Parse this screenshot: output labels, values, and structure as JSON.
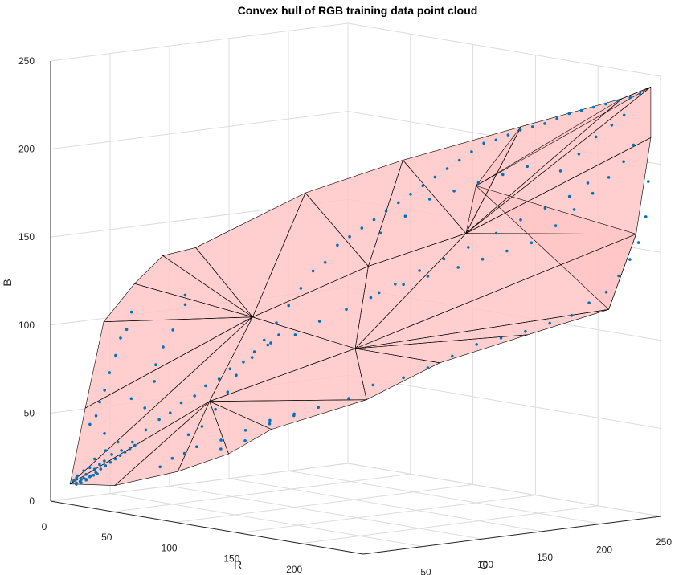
{
  "chart_data": {
    "type": "scatter",
    "title": "Convex hull of RGB training data point cloud",
    "xlabel": "R",
    "ylabel": "G",
    "zlabel": "B",
    "xlim": [
      0,
      250
    ],
    "ylim": [
      0,
      250
    ],
    "zlim": [
      0,
      250
    ],
    "x_ticks": [
      "0",
      "50",
      "100",
      "150",
      "200",
      "250"
    ],
    "y_ticks": [
      "0",
      "50",
      "100",
      "150",
      "200",
      "250"
    ],
    "z_ticks": [
      "0",
      "50",
      "100",
      "150",
      "200",
      "250"
    ],
    "grid": true,
    "point_color": "#0072bd",
    "hull_face_color": "#ffc6c6",
    "hull_edge_color": "#000000",
    "hull_vertices": [
      [
        8,
        8,
        10
      ],
      [
        22,
        6,
        55
      ],
      [
        33,
        10,
        105
      ],
      [
        50,
        18,
        128
      ],
      [
        65,
        26,
        145
      ],
      [
        78,
        40,
        150
      ],
      [
        120,
        88,
        182
      ],
      [
        160,
        128,
        202
      ],
      [
        205,
        180,
        222
      ],
      [
        240,
        228,
        238
      ],
      [
        247,
        245,
        244
      ],
      [
        246,
        246,
        215
      ],
      [
        240,
        240,
        160
      ],
      [
        220,
        238,
        115
      ],
      [
        180,
        212,
        98
      ],
      [
        140,
        180,
        80
      ],
      [
        110,
        150,
        58
      ],
      [
        72,
        110,
        40
      ],
      [
        52,
        95,
        25
      ],
      [
        35,
        70,
        15
      ],
      [
        18,
        35,
        8
      ],
      [
        95,
        70,
        110
      ],
      [
        140,
        120,
        140
      ],
      [
        180,
        160,
        160
      ],
      [
        120,
        130,
        90
      ],
      [
        70,
        60,
        60
      ],
      [
        150,
        200,
        180
      ]
    ],
    "hull_faces": [
      [
        0,
        1,
        21
      ],
      [
        1,
        2,
        21
      ],
      [
        2,
        3,
        21
      ],
      [
        3,
        4,
        21
      ],
      [
        4,
        5,
        21
      ],
      [
        5,
        6,
        21
      ],
      [
        6,
        7,
        22
      ],
      [
        6,
        21,
        22
      ],
      [
        7,
        8,
        23
      ],
      [
        7,
        22,
        23
      ],
      [
        8,
        9,
        23
      ],
      [
        9,
        10,
        23
      ],
      [
        10,
        11,
        23
      ],
      [
        11,
        12,
        23
      ],
      [
        12,
        13,
        24
      ],
      [
        12,
        23,
        24
      ],
      [
        13,
        14,
        24
      ],
      [
        14,
        15,
        24
      ],
      [
        15,
        16,
        24
      ],
      [
        16,
        17,
        25
      ],
      [
        16,
        24,
        25
      ],
      [
        17,
        18,
        25
      ],
      [
        18,
        19,
        25
      ],
      [
        19,
        20,
        25
      ],
      [
        20,
        0,
        25
      ],
      [
        0,
        21,
        25
      ],
      [
        21,
        22,
        24
      ],
      [
        21,
        24,
        25
      ],
      [
        22,
        23,
        24
      ],
      [
        8,
        23,
        26
      ],
      [
        9,
        26,
        10
      ],
      [
        13,
        26,
        12
      ]
    ],
    "points": [
      [
        10,
        9,
        12
      ],
      [
        12,
        10,
        15
      ],
      [
        15,
        12,
        18
      ],
      [
        18,
        14,
        20
      ],
      [
        20,
        16,
        25
      ],
      [
        22,
        18,
        22
      ],
      [
        25,
        20,
        30
      ],
      [
        14,
        11,
        13
      ],
      [
        16,
        13,
        16
      ],
      [
        19,
        17,
        19
      ],
      [
        13,
        8,
        14
      ],
      [
        24,
        20,
        24
      ],
      [
        28,
        22,
        28
      ],
      [
        30,
        25,
        35
      ],
      [
        26,
        18,
        40
      ],
      [
        20,
        12,
        45
      ],
      [
        23,
        14,
        50
      ],
      [
        25,
        15,
        58
      ],
      [
        28,
        16,
        65
      ],
      [
        30,
        18,
        75
      ],
      [
        33,
        20,
        85
      ],
      [
        35,
        22,
        95
      ],
      [
        38,
        24,
        100
      ],
      [
        40,
        26,
        110
      ],
      [
        36,
        30,
        60
      ],
      [
        42,
        35,
        55
      ],
      [
        45,
        40,
        70
      ],
      [
        48,
        38,
        80
      ],
      [
        50,
        42,
        90
      ],
      [
        55,
        45,
        100
      ],
      [
        60,
        50,
        120
      ],
      [
        62,
        48,
        115
      ],
      [
        58,
        55,
        40
      ],
      [
        64,
        60,
        45
      ],
      [
        70,
        65,
        55
      ],
      [
        75,
        70,
        65
      ],
      [
        80,
        72,
        75
      ],
      [
        85,
        80,
        85
      ],
      [
        90,
        85,
        95
      ],
      [
        95,
        90,
        105
      ],
      [
        100,
        95,
        115
      ],
      [
        105,
        100,
        125
      ],
      [
        110,
        105,
        135
      ],
      [
        115,
        110,
        140
      ],
      [
        120,
        115,
        150
      ],
      [
        125,
        120,
        155
      ],
      [
        130,
        125,
        160
      ],
      [
        135,
        130,
        165
      ],
      [
        140,
        135,
        170
      ],
      [
        145,
        140,
        175
      ],
      [
        150,
        145,
        180
      ],
      [
        155,
        150,
        185
      ],
      [
        160,
        155,
        190
      ],
      [
        165,
        160,
        195
      ],
      [
        170,
        165,
        200
      ],
      [
        175,
        170,
        205
      ],
      [
        180,
        175,
        210
      ],
      [
        185,
        180,
        212
      ],
      [
        190,
        185,
        215
      ],
      [
        195,
        190,
        218
      ],
      [
        200,
        195,
        220
      ],
      [
        205,
        200,
        222
      ],
      [
        210,
        205,
        225
      ],
      [
        215,
        210,
        228
      ],
      [
        220,
        215,
        230
      ],
      [
        225,
        220,
        232
      ],
      [
        230,
        225,
        234
      ],
      [
        235,
        230,
        236
      ],
      [
        240,
        235,
        238
      ],
      [
        243,
        240,
        240
      ],
      [
        238,
        232,
        228
      ],
      [
        232,
        228,
        222
      ],
      [
        225,
        222,
        215
      ],
      [
        218,
        215,
        205
      ],
      [
        210,
        208,
        195
      ],
      [
        60,
        80,
        30
      ],
      [
        70,
        90,
        35
      ],
      [
        80,
        100,
        45
      ],
      [
        90,
        110,
        50
      ],
      [
        100,
        120,
        55
      ],
      [
        110,
        135,
        60
      ],
      [
        120,
        145,
        68
      ],
      [
        130,
        160,
        72
      ],
      [
        140,
        170,
        78
      ],
      [
        150,
        180,
        85
      ],
      [
        160,
        190,
        92
      ],
      [
        170,
        200,
        96
      ],
      [
        180,
        210,
        100
      ],
      [
        190,
        220,
        105
      ],
      [
        200,
        228,
        110
      ],
      [
        210,
        232,
        118
      ],
      [
        220,
        236,
        125
      ],
      [
        228,
        238,
        135
      ],
      [
        235,
        240,
        145
      ],
      [
        240,
        242,
        155
      ],
      [
        244,
        244,
        170
      ],
      [
        245,
        245,
        190
      ],
      [
        100,
        80,
        95
      ],
      [
        110,
        90,
        100
      ],
      [
        120,
        100,
        108
      ],
      [
        130,
        112,
        115
      ],
      [
        140,
        122,
        122
      ],
      [
        150,
        132,
        130
      ],
      [
        160,
        142,
        138
      ],
      [
        170,
        152,
        145
      ],
      [
        180,
        162,
        152
      ],
      [
        190,
        175,
        160
      ],
      [
        200,
        185,
        168
      ],
      [
        210,
        195,
        175
      ],
      [
        220,
        205,
        182
      ],
      [
        228,
        212,
        190
      ],
      [
        40,
        50,
        20
      ],
      [
        45,
        55,
        25
      ],
      [
        50,
        60,
        28
      ],
      [
        55,
        65,
        32
      ],
      [
        65,
        75,
        36
      ],
      [
        75,
        85,
        42
      ],
      [
        85,
        95,
        48
      ],
      [
        95,
        105,
        52
      ],
      [
        30,
        28,
        30
      ],
      [
        35,
        32,
        35
      ],
      [
        40,
        38,
        42
      ],
      [
        45,
        44,
        48
      ],
      [
        50,
        48,
        52
      ],
      [
        55,
        52,
        58
      ],
      [
        60,
        58,
        62
      ],
      [
        65,
        62,
        68
      ],
      [
        70,
        68,
        72
      ],
      [
        75,
        72,
        78
      ],
      [
        80,
        78,
        82
      ],
      [
        85,
        82,
        88
      ],
      [
        90,
        88,
        92
      ],
      [
        95,
        92,
        98
      ],
      [
        150,
        120,
        160
      ],
      [
        160,
        130,
        170
      ],
      [
        170,
        140,
        180
      ],
      [
        180,
        150,
        185
      ],
      [
        190,
        160,
        190
      ],
      [
        200,
        170,
        195
      ],
      [
        210,
        180,
        200
      ],
      [
        120,
        150,
        120
      ],
      [
        130,
        160,
        125
      ],
      [
        140,
        170,
        130
      ],
      [
        150,
        185,
        135
      ],
      [
        160,
        195,
        140
      ],
      [
        170,
        205,
        145
      ],
      [
        180,
        215,
        150
      ],
      [
        190,
        225,
        160
      ],
      [
        200,
        230,
        170
      ],
      [
        210,
        235,
        180
      ],
      [
        220,
        238,
        190
      ],
      [
        230,
        240,
        200
      ],
      [
        236,
        242,
        210
      ],
      [
        12,
        9,
        11
      ],
      [
        14,
        10,
        12
      ],
      [
        16,
        11,
        14
      ],
      [
        17,
        12,
        13
      ],
      [
        19,
        13,
        15
      ],
      [
        21,
        14,
        16
      ],
      [
        23,
        15,
        17
      ],
      [
        11,
        10,
        10
      ],
      [
        13,
        12,
        11
      ],
      [
        15,
        14,
        13
      ],
      [
        17,
        16,
        15
      ],
      [
        19,
        18,
        17
      ],
      [
        21,
        20,
        19
      ],
      [
        23,
        22,
        21
      ],
      [
        25,
        24,
        23
      ],
      [
        27,
        26,
        25
      ],
      [
        29,
        28,
        27
      ],
      [
        31,
        30,
        29
      ],
      [
        33,
        32,
        31
      ],
      [
        35,
        34,
        33
      ]
    ]
  }
}
